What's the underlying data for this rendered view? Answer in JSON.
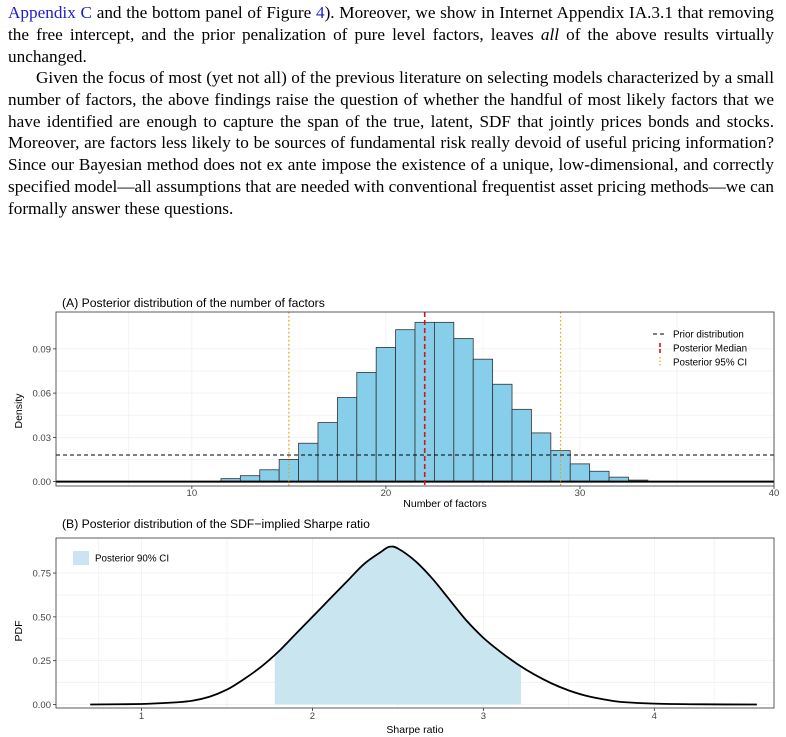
{
  "text": {
    "p1_link1": "Appendix C",
    "p1_mid1": " and the bottom panel of Figure ",
    "p1_link2": "4",
    "p1_rest": "). Moreover, we show in Internet Appendix IA.3.1 that removing the free intercept, and the prior penalization of pure level factors, leaves ",
    "p1_emph": "all",
    "p1_end": " of the above results virtually unchanged.",
    "p2": "Given the focus of most (yet not all) of the previous literature on selecting models characterized by a small number of factors, the above findings raise the question of whether the handful of most likely factors that we have identified are enough to capture the span of the true, latent, SDF that jointly prices bonds and stocks. Moreover, are factors less likely to be sources of fundamental risk really devoid of useful pricing information? Since our Bayesian method does not ex ante impose the existence of a unique, low-dimensional, and correctly specified model—all assumptions that are needed with conventional frequentist asset pricing methods—we can formally answer these questions."
  },
  "chart_data": [
    {
      "type": "bar",
      "title": "(A) Posterior distribution of the number of factors",
      "xlabel": "Number of factors",
      "ylabel": "Density",
      "xlim": [
        3,
        40
      ],
      "ylim": [
        -0.003,
        0.115
      ],
      "xticks": [
        10,
        20,
        30,
        40
      ],
      "yticks": [
        0.0,
        0.03,
        0.06,
        0.09
      ],
      "ytick_labels": [
        "0.00",
        "0.03",
        "0.06",
        "0.09"
      ],
      "bars": {
        "x": [
          12,
          13,
          14,
          15,
          16,
          17,
          18,
          19,
          20,
          21,
          22,
          23,
          24,
          25,
          26,
          27,
          28,
          29,
          30,
          31,
          32,
          33
        ],
        "y": [
          0.002,
          0.004,
          0.008,
          0.015,
          0.026,
          0.04,
          0.057,
          0.074,
          0.091,
          0.103,
          0.108,
          0.108,
          0.097,
          0.083,
          0.066,
          0.049,
          0.033,
          0.021,
          0.012,
          0.007,
          0.003,
          0.001
        ],
        "color": "#87CEEB"
      },
      "prior_density": 0.018,
      "posterior_median": 22,
      "posterior_ci95": [
        15,
        29
      ],
      "legend": [
        "Prior distribution",
        "Posterior Median",
        "Posterior 95% CI"
      ],
      "legend_position": "top-right",
      "grid": true
    },
    {
      "type": "line",
      "title": "(B) Posterior distribution of the SDF−implied Sharpe ratio",
      "xlabel": "Sharpe ratio",
      "ylabel": "PDF",
      "xlim": [
        0.5,
        4.7
      ],
      "ylim": [
        -0.02,
        0.95
      ],
      "xticks": [
        1,
        2,
        3,
        4
      ],
      "yticks": [
        0.0,
        0.25,
        0.5,
        0.75
      ],
      "ytick_labels": [
        "0.00",
        "0.25",
        "0.50",
        "0.75"
      ],
      "x": [
        0.7,
        1.0,
        1.2,
        1.3,
        1.4,
        1.5,
        1.6,
        1.7,
        1.8,
        1.9,
        2.0,
        2.1,
        2.2,
        2.3,
        2.4,
        2.45,
        2.5,
        2.6,
        2.7,
        2.8,
        2.9,
        3.0,
        3.1,
        3.2,
        3.3,
        3.4,
        3.5,
        3.6,
        3.7,
        3.8,
        4.0,
        4.3,
        4.6
      ],
      "y": [
        0.0,
        0.003,
        0.012,
        0.022,
        0.045,
        0.085,
        0.145,
        0.215,
        0.3,
        0.4,
        0.5,
        0.6,
        0.7,
        0.8,
        0.87,
        0.9,
        0.89,
        0.82,
        0.72,
        0.6,
        0.48,
        0.38,
        0.3,
        0.23,
        0.17,
        0.12,
        0.08,
        0.05,
        0.03,
        0.015,
        0.005,
        0.001,
        0.0
      ],
      "ci90": [
        1.78,
        3.22
      ],
      "ci_color": "#c9e6f0",
      "legend": [
        "Posterior 90% CI"
      ],
      "legend_position": "top-left",
      "grid": true
    }
  ]
}
